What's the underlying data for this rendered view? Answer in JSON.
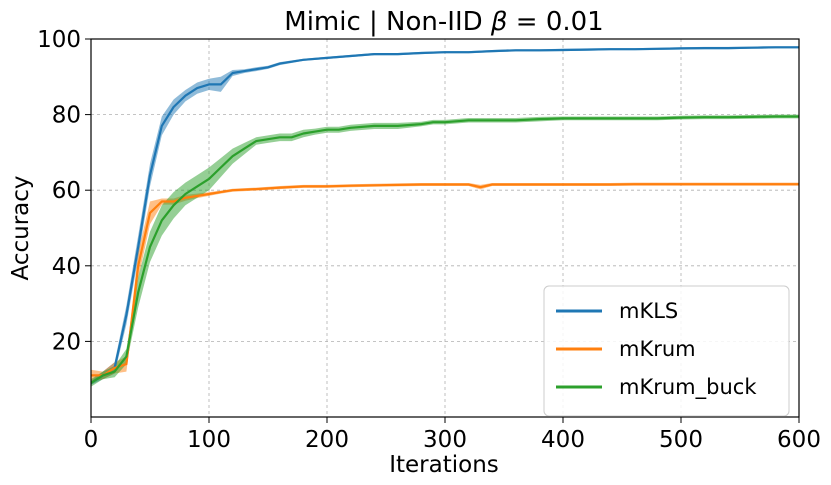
{
  "chart_data": {
    "type": "line",
    "title_prefix": "Mimic | Non-IID ",
    "title_symbol": "β",
    "title_suffix": " = 0.01",
    "xlabel": "Iterations",
    "ylabel": "Accuracy",
    "xlim": [
      0,
      600
    ],
    "ylim": [
      0,
      100
    ],
    "xticks": [
      0,
      100,
      200,
      300,
      400,
      500,
      600
    ],
    "yticks": [
      20,
      40,
      60,
      80,
      100
    ],
    "grid": true,
    "legend_position": "lower-right",
    "series": [
      {
        "name": "mKLS",
        "color": "#1f77b4",
        "x": [
          0,
          10,
          20,
          30,
          40,
          50,
          60,
          70,
          80,
          90,
          100,
          110,
          120,
          130,
          140,
          150,
          160,
          180,
          200,
          220,
          240,
          260,
          280,
          300,
          320,
          340,
          360,
          380,
          400,
          420,
          440,
          460,
          480,
          500,
          520,
          540,
          560,
          580,
          600
        ],
        "y": [
          9,
          11,
          13,
          27,
          45,
          64,
          77,
          82,
          85,
          87,
          88,
          88,
          91,
          91.5,
          92,
          92.5,
          93.5,
          94.5,
          95,
          95.5,
          96,
          96,
          96.3,
          96.5,
          96.5,
          96.8,
          97,
          97,
          97.1,
          97.2,
          97.3,
          97.3,
          97.4,
          97.5,
          97.6,
          97.6,
          97.7,
          97.8,
          97.8
        ],
        "band": [
          0.5,
          1,
          1.5,
          2.5,
          3,
          3,
          2.5,
          2,
          1.5,
          1.5,
          1.5,
          2,
          0.8,
          0.5,
          0.5,
          0.4,
          0.4,
          0.3,
          0.3,
          0.3,
          0.3,
          0.3,
          0.3,
          0.3,
          0.3,
          0.3,
          0.3,
          0.3,
          0.3,
          0.3,
          0.3,
          0.3,
          0.3,
          0.3,
          0.3,
          0.3,
          0.3,
          0.3,
          0.3
        ]
      },
      {
        "name": "mKrum",
        "color": "#ff7f0e",
        "x": [
          0,
          10,
          20,
          30,
          40,
          50,
          60,
          70,
          80,
          90,
          100,
          110,
          120,
          140,
          160,
          180,
          200,
          220,
          240,
          260,
          280,
          300,
          320,
          330,
          340,
          360,
          380,
          400,
          420,
          440,
          460,
          480,
          500,
          520,
          540,
          560,
          580,
          600
        ],
        "y": [
          11,
          11,
          13,
          14,
          40,
          54,
          57,
          57,
          58,
          58.5,
          59,
          59.5,
          60,
          60.3,
          60.7,
          61,
          61,
          61.2,
          61.3,
          61.4,
          61.5,
          61.5,
          61.5,
          60.8,
          61.5,
          61.5,
          61.5,
          61.5,
          61.5,
          61.5,
          61.6,
          61.6,
          61.6,
          61.6,
          61.6,
          61.6,
          61.6,
          61.6
        ],
        "band": [
          1.5,
          1,
          1.5,
          2,
          3.5,
          3,
          0.8,
          0.8,
          0.8,
          0.6,
          0.5,
          0.4,
          0.4,
          0.4,
          0.4,
          0.4,
          0.4,
          0.4,
          0.4,
          0.4,
          0.4,
          0.4,
          0.4,
          0.6,
          0.4,
          0.4,
          0.4,
          0.4,
          0.4,
          0.4,
          0.4,
          0.4,
          0.4,
          0.4,
          0.4,
          0.4,
          0.4,
          0.4
        ]
      },
      {
        "name": "mKrum_buck",
        "color": "#2ca02c",
        "x": [
          0,
          10,
          20,
          30,
          40,
          50,
          60,
          70,
          80,
          90,
          100,
          110,
          120,
          130,
          140,
          150,
          160,
          170,
          180,
          190,
          200,
          210,
          220,
          240,
          260,
          280,
          290,
          300,
          320,
          340,
          360,
          380,
          400,
          420,
          440,
          460,
          480,
          500,
          520,
          540,
          560,
          580,
          600
        ],
        "y": [
          9,
          11,
          12,
          16,
          33,
          45,
          52,
          56,
          59,
          61,
          63,
          66,
          69,
          71,
          73,
          73.5,
          74,
          74,
          75,
          75.5,
          76,
          76,
          76.5,
          77,
          77,
          77.5,
          78,
          78,
          78.5,
          78.5,
          78.5,
          78.8,
          79,
          79,
          79,
          79,
          79,
          79.2,
          79.3,
          79.3,
          79.4,
          79.5,
          79.5
        ],
        "band": [
          1,
          1,
          1.5,
          2,
          4,
          4,
          4,
          3.5,
          3,
          3,
          3,
          2.5,
          2,
          1.5,
          1,
          1,
          1,
          1,
          1,
          0.8,
          0.8,
          0.8,
          0.8,
          0.8,
          0.8,
          0.6,
          0.6,
          0.6,
          0.6,
          0.6,
          0.6,
          0.6,
          0.5,
          0.5,
          0.5,
          0.5,
          0.5,
          0.5,
          0.5,
          0.5,
          0.5,
          0.5,
          0.5
        ]
      }
    ]
  }
}
